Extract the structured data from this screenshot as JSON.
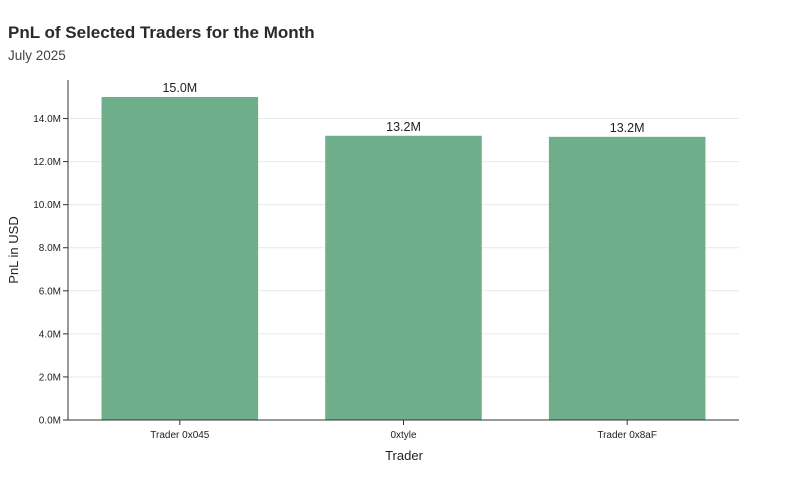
{
  "title": "PnL of Selected Traders for the Month",
  "subtitle": "July 2025",
  "colors": {
    "bar": "#6fae8b",
    "grid": "#e9e9e9",
    "axis": "#333333"
  },
  "chart_data": {
    "type": "bar",
    "title": "PnL of Selected Traders for the Month",
    "subtitle": "July 2025",
    "xlabel": "Trader",
    "ylabel": "PnL in USD",
    "categories": [
      "Trader 0x045",
      "0xtyle",
      "Trader 0x8aF"
    ],
    "values": [
      15000000,
      13200000,
      13150000
    ],
    "data_labels": [
      "15.0M",
      "13.2M",
      "13.2M"
    ],
    "ylim": [
      0,
      15000000
    ],
    "yticks": [
      0,
      2000000,
      4000000,
      6000000,
      8000000,
      10000000,
      12000000,
      14000000
    ],
    "ytick_labels": [
      "0.0M",
      "2.0M",
      "4.0M",
      "6.0M",
      "8.0M",
      "10.0M",
      "12.0M",
      "14.0M"
    ],
    "grid": true,
    "legend": "none"
  }
}
